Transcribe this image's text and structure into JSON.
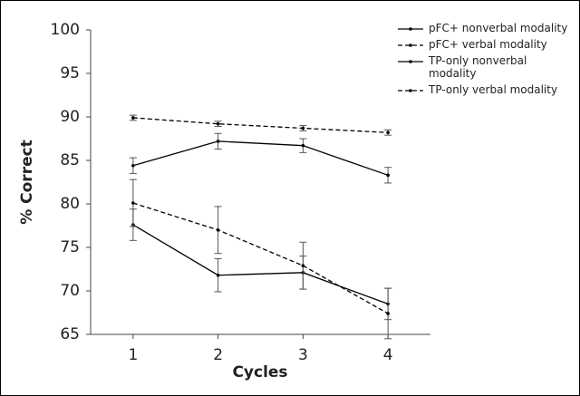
{
  "chart_data": {
    "type": "line",
    "x_label": "Cycles",
    "y_label": "% Correct",
    "x": [
      1,
      2,
      3,
      4
    ],
    "xlim": [
      0.5,
      4.5
    ],
    "xticks": [
      1,
      2,
      3,
      4
    ],
    "ylim": [
      65,
      100
    ],
    "yticks": [
      65,
      70,
      75,
      80,
      85,
      90,
      95,
      100
    ],
    "legend": "upper right",
    "series": [
      {
        "name": "pFC+ nonverbal modality",
        "color": "#000000",
        "dash": "solid",
        "values": [
          84.4,
          87.2,
          86.7,
          83.3
        ],
        "errors": [
          0.9,
          0.9,
          0.8,
          0.9
        ]
      },
      {
        "name": "pFC+ verbal modality",
        "color": "#000000",
        "dash": "dashed",
        "values": [
          89.9,
          89.2,
          88.7,
          88.2
        ],
        "errors": [
          0.3,
          0.3,
          0.3,
          0.3
        ]
      },
      {
        "name": "TP-only nonverbal modality",
        "color": "#000000",
        "dash": "solid",
        "values": [
          77.6,
          71.8,
          72.1,
          68.5
        ],
        "errors": [
          1.8,
          1.9,
          1.9,
          1.8
        ]
      },
      {
        "name": "TP-only verbal modality",
        "color": "#000000",
        "dash": "dashed",
        "values": [
          80.1,
          77.0,
          72.9,
          67.4
        ],
        "errors": [
          2.7,
          2.7,
          2.7,
          2.9
        ]
      }
    ]
  }
}
